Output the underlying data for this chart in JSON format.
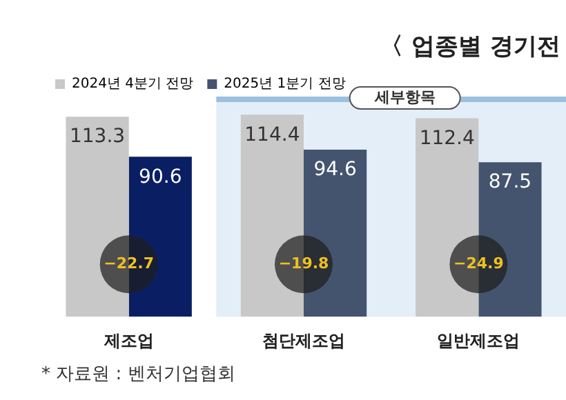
{
  "chart_data": {
    "type": "bar",
    "title": "〈 업종별 경기전",
    "categories": [
      "제조업",
      "첨단제조업",
      "일반제조업"
    ],
    "series": [
      {
        "name": "2024년 4분기 전망",
        "color": "#c8c8c8",
        "values": [
          113.3,
          114.4,
          112.4
        ]
      },
      {
        "name": "2025년 1분기 전망",
        "color": "#44546e",
        "colors": [
          "#0a1f63",
          "#44546e",
          "#44546e"
        ],
        "values": [
          90.6,
          94.6,
          87.5
        ]
      }
    ],
    "data_labels": true,
    "legend": "top left",
    "tick_labels": "x",
    "bands": [
      {
        "axis": "x",
        "from": "첨단제조업",
        "to": "일반제조업",
        "label": "세부항목",
        "color": "#e3eef8"
      }
    ],
    "annotations": [
      {
        "text": "−22.7",
        "x": "제조업"
      },
      {
        "text": "−19.8",
        "x": "첨단제조업"
      },
      {
        "text": "−24.9",
        "x": "일반제조업"
      },
      "* 자료원 : 벤처기업협회"
    ]
  }
}
